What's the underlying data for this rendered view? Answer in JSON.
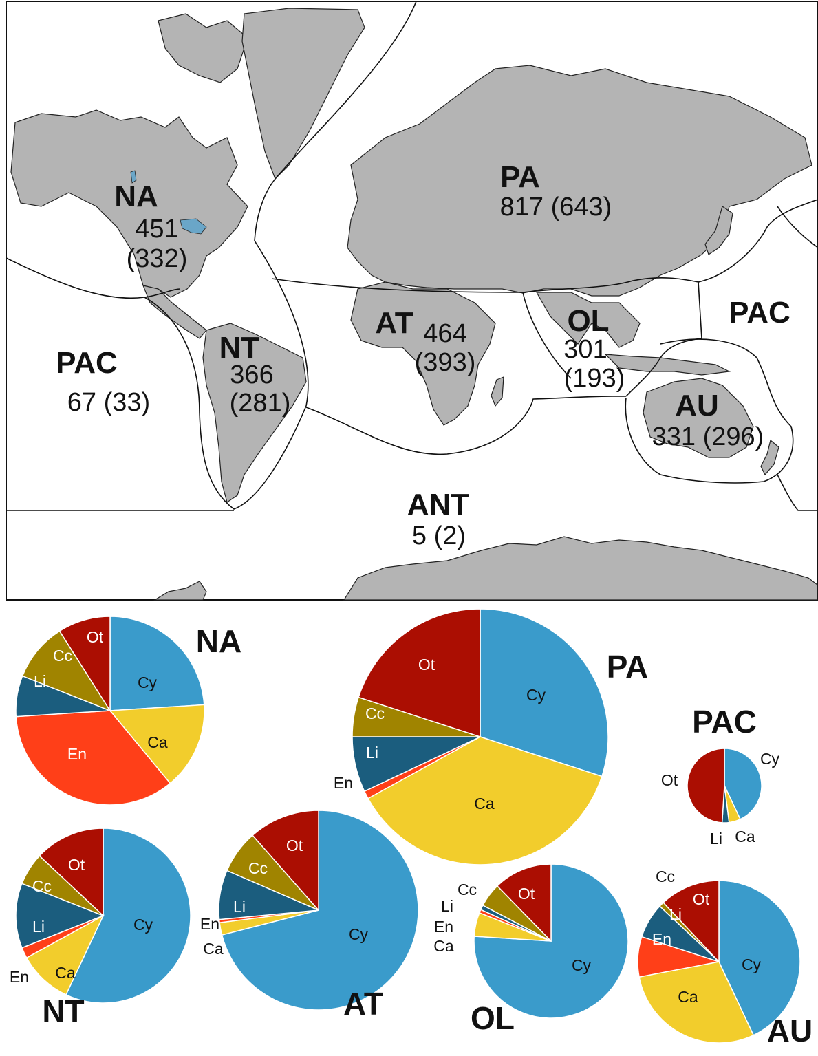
{
  "map": {
    "regions": [
      {
        "code": "NA",
        "count": "451",
        "paren": "(332)"
      },
      {
        "code": "PA",
        "count": "817 (643)"
      },
      {
        "code": "AT",
        "count": "464",
        "paren": "(393)"
      },
      {
        "code": "OL",
        "count": "301",
        "paren": "(193)"
      },
      {
        "code": "PAC",
        "count": "67 (33)"
      },
      {
        "code": "PAC"
      },
      {
        "code": "NT",
        "count": "366",
        "paren": "(281)"
      },
      {
        "code": "AU",
        "count": "331 (296)"
      },
      {
        "code": "ANT",
        "count": "5 (2)"
      }
    ]
  },
  "chart_data": [
    {
      "type": "pie",
      "title": "NA",
      "labels": [
        "Cy",
        "Ca",
        "En",
        "Li",
        "Cc",
        "Ot"
      ],
      "values": [
        24,
        15,
        35,
        7,
        10,
        9
      ]
    },
    {
      "type": "pie",
      "title": "PA",
      "labels": [
        "Cy",
        "Ca",
        "En",
        "Li",
        "Cc",
        "Ot"
      ],
      "values": [
        30,
        37,
        1,
        7,
        5,
        20
      ]
    },
    {
      "type": "pie",
      "title": "PAC",
      "labels": [
        "Cy",
        "Ca",
        "Li",
        "Ot"
      ],
      "values": [
        43,
        5,
        3,
        49
      ]
    },
    {
      "type": "pie",
      "title": "NT",
      "labels": [
        "Cy",
        "Ca",
        "En",
        "Li",
        "Cc",
        "Ot"
      ],
      "values": [
        57,
        10,
        2,
        12,
        6,
        13
      ]
    },
    {
      "type": "pie",
      "title": "AT",
      "labels": [
        "Cy",
        "Ca",
        "En",
        "Li",
        "Cc",
        "Ot"
      ],
      "values": [
        71,
        2,
        0.5,
        8,
        7,
        11.5
      ]
    },
    {
      "type": "pie",
      "title": "OL",
      "labels": [
        "Cy",
        "Ca",
        "En",
        "Li",
        "Cc",
        "Ot"
      ],
      "values": [
        76,
        5,
        0.7,
        1,
        5,
        12.3
      ]
    },
    {
      "type": "pie",
      "title": "AU",
      "labels": [
        "Cy",
        "Ca",
        "En",
        "Li",
        "Cc",
        "Ot"
      ],
      "values": [
        43,
        29,
        8,
        7,
        1,
        12
      ]
    }
  ],
  "colors": {
    "Cy": "#3a9bcb",
    "Ca": "#f2cd2c",
    "En": "#ff3f18",
    "Li": "#1b5d7e",
    "Cc": "#a08400",
    "Ot": "#ab0e02",
    "land": "#b4b4b4",
    "lake": "#6aa6c8"
  }
}
